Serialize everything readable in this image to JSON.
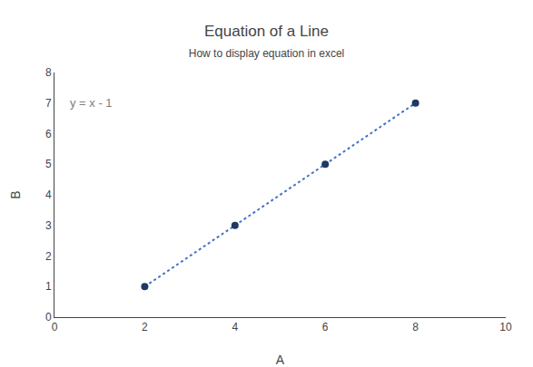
{
  "chart_data": {
    "type": "scatter",
    "title": "Equation of a Line",
    "subtitle": "How to display equation in excel",
    "x": [
      2,
      4,
      6,
      8
    ],
    "series": [
      {
        "type": "line",
        "line_style": "dotted",
        "color": "#4472C4",
        "values": [
          1,
          3,
          5,
          7
        ]
      },
      {
        "type": "scatter",
        "marker": "circle",
        "color": "#1F3864",
        "values": [
          1,
          3,
          5,
          7
        ]
      }
    ],
    "xlabel": "A",
    "ylabel": "B",
    "annotations": [
      {
        "text": "y = x - 1",
        "x": 0.3,
        "y": 7,
        "color": "#808080"
      }
    ],
    "xlim": [
      0,
      10
    ],
    "ylim": [
      0,
      8
    ],
    "xticks": [
      0,
      2,
      4,
      6,
      8,
      10
    ],
    "yticks": [
      0,
      1,
      2,
      3,
      4,
      5,
      6,
      7,
      8
    ],
    "grid": false
  }
}
